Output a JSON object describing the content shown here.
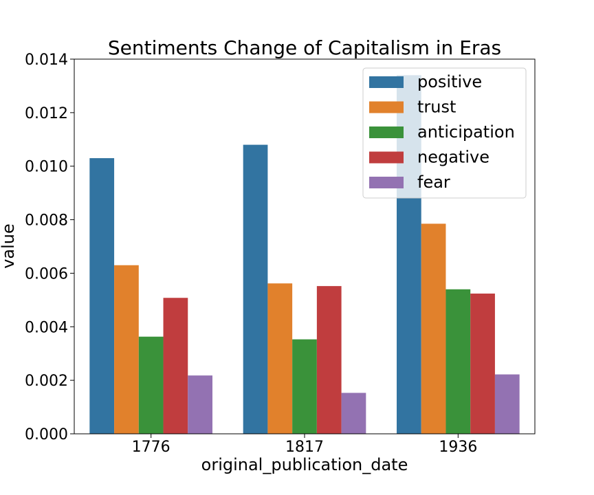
{
  "chart_data": {
    "type": "bar",
    "title": "Sentiments Change of Capitalism in Eras",
    "xlabel": "original_publication_date",
    "ylabel": "value",
    "categories": [
      "1776",
      "1817",
      "1936"
    ],
    "ylim": [
      0,
      0.014
    ],
    "yticks": [
      "0.000",
      "0.002",
      "0.004",
      "0.006",
      "0.008",
      "0.010",
      "0.012",
      "0.014"
    ],
    "grid": false,
    "legend_position": "top-right",
    "series": [
      {
        "name": "positive",
        "color": "#3274a1",
        "values": [
          0.0103,
          0.0108,
          0.0134
        ]
      },
      {
        "name": "trust",
        "color": "#e1812c",
        "values": [
          0.0063,
          0.00562,
          0.00785
        ]
      },
      {
        "name": "anticipation",
        "color": "#3a923a",
        "values": [
          0.00363,
          0.00353,
          0.0054
        ]
      },
      {
        "name": "negative",
        "color": "#c03d3e",
        "values": [
          0.00508,
          0.00552,
          0.00524
        ]
      },
      {
        "name": "fear",
        "color": "#9372b2",
        "values": [
          0.00218,
          0.00153,
          0.00222
        ]
      }
    ]
  }
}
